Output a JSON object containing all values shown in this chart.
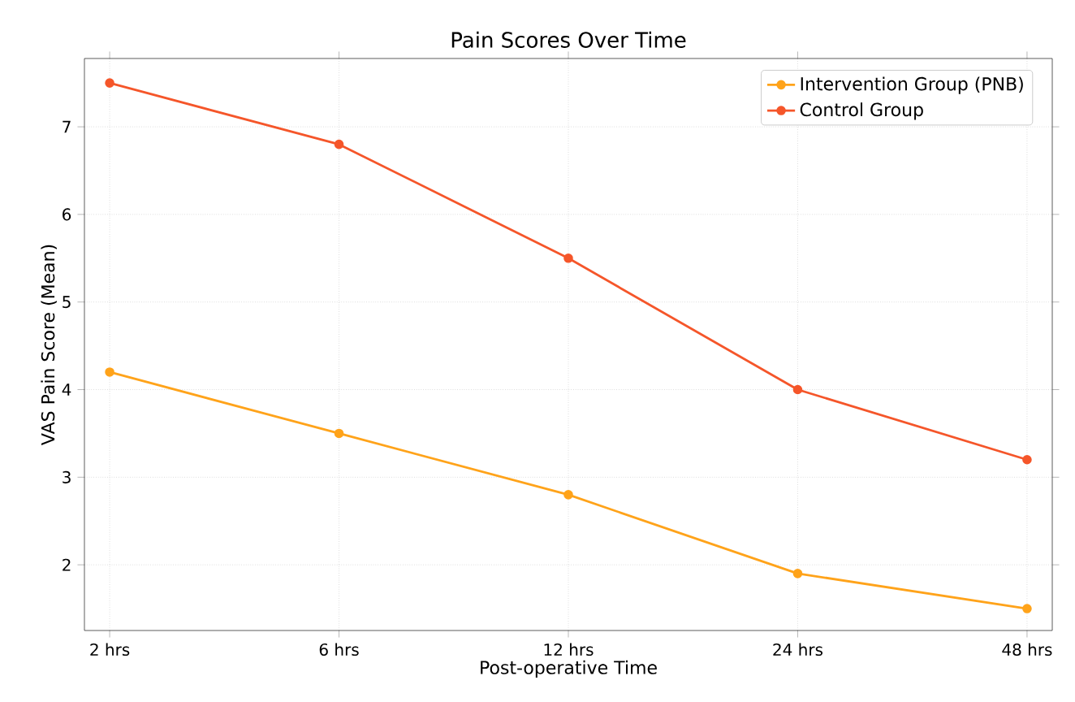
{
  "chart_data": {
    "type": "line",
    "title": "Pain Scores Over Time",
    "xlabel": "Post-operative Time",
    "ylabel": "VAS Pain Score (Mean)",
    "categories": [
      "2 hrs",
      "6 hrs",
      "12 hrs",
      "24 hrs",
      "48 hrs"
    ],
    "series": [
      {
        "name": "Intervention Group (PNB)",
        "color": "#ffa31a",
        "values": [
          4.2,
          3.5,
          2.8,
          1.9,
          1.5
        ]
      },
      {
        "name": "Control Group",
        "color": "#f5562a",
        "values": [
          7.5,
          6.8,
          5.5,
          4.0,
          3.2
        ]
      }
    ],
    "ylim": [
      1.25,
      7.78
    ],
    "yticks": [
      2,
      3,
      4,
      5,
      6,
      7
    ],
    "grid": true,
    "legend": "top right",
    "marker": "circle",
    "line_style": "solid"
  }
}
